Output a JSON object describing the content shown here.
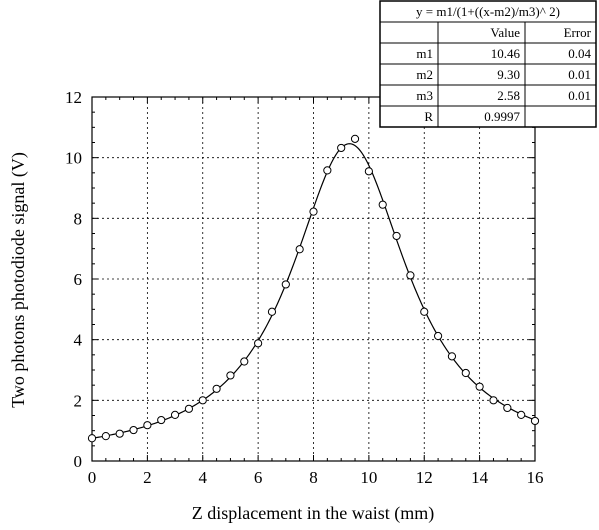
{
  "chart_data": {
    "type": "scatter",
    "xlabel": "Z displacement in the waist (mm)",
    "ylabel": "Two photons photodiode signal (V)",
    "xlim": [
      0,
      16
    ],
    "ylim": [
      0,
      12
    ],
    "xticks": [
      0,
      2,
      4,
      6,
      8,
      10,
      12,
      14,
      16
    ],
    "yticks": [
      0,
      2,
      4,
      6,
      8,
      10,
      12
    ],
    "grid": true,
    "series": [
      {
        "marker": "open-circle",
        "x": [
          0,
          0.5,
          1,
          1.5,
          2,
          2.5,
          3,
          3.5,
          4,
          4.5,
          5,
          5.5,
          6,
          6.5,
          7,
          7.5,
          8,
          8.5,
          9,
          9.5,
          10,
          10.5,
          11,
          11.5,
          12,
          12.5,
          13,
          13.5,
          14,
          14.5,
          15,
          15.5,
          16
        ],
        "y": [
          0.75,
          0.82,
          0.9,
          1.02,
          1.18,
          1.35,
          1.52,
          1.72,
          2.0,
          2.38,
          2.82,
          3.28,
          3.88,
          4.92,
          5.82,
          6.98,
          8.22,
          9.58,
          10.32,
          10.62,
          9.55,
          8.45,
          7.42,
          6.12,
          4.92,
          4.12,
          3.45,
          2.9,
          2.45,
          2.0,
          1.75,
          1.52,
          1.32
        ]
      }
    ],
    "fit": {
      "equation": "y = m1/(1+((x-m2)/m3)^ 2)",
      "m1": 10.46,
      "m2": 9.3,
      "m3": 2.58
    },
    "fit_table": {
      "title": "y = m1/(1+((x-m2)/m3)^ 2)",
      "header": [
        "",
        "Value",
        "Error"
      ],
      "rows": [
        [
          "m1",
          "10.46",
          "0.04"
        ],
        [
          "m2",
          "9.30",
          "0.01"
        ],
        [
          "m3",
          "2.58",
          "0.01"
        ],
        [
          "R",
          "0.9997",
          ""
        ]
      ]
    }
  }
}
